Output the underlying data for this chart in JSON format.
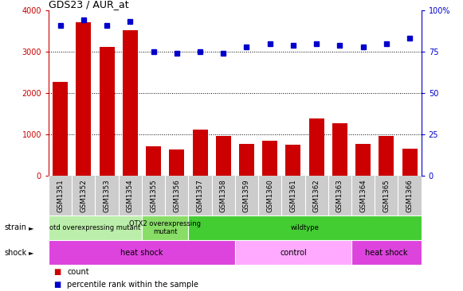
{
  "title": "GDS23 / AUR_at",
  "samples": [
    "GSM1351",
    "GSM1352",
    "GSM1353",
    "GSM1354",
    "GSM1355",
    "GSM1356",
    "GSM1357",
    "GSM1358",
    "GSM1359",
    "GSM1360",
    "GSM1361",
    "GSM1362",
    "GSM1363",
    "GSM1364",
    "GSM1365",
    "GSM1366"
  ],
  "counts": [
    2280,
    3700,
    3120,
    3510,
    720,
    650,
    1120,
    960,
    770,
    850,
    760,
    1380,
    1270,
    770,
    960,
    660
  ],
  "percentiles": [
    91,
    94,
    91,
    93,
    75,
    74,
    75,
    74,
    78,
    80,
    79,
    80,
    79,
    78,
    80,
    83
  ],
  "ylim_left": [
    0,
    4000
  ],
  "ylim_right": [
    0,
    100
  ],
  "yticks_left": [
    0,
    1000,
    2000,
    3000,
    4000
  ],
  "yticks_right": [
    0,
    25,
    50,
    75,
    100
  ],
  "bar_color": "#cc0000",
  "dot_color": "#0000cc",
  "strain_groups": [
    {
      "label": "otd overexpressing mutant",
      "start": 0,
      "end": 4,
      "color": "#bbeeaa"
    },
    {
      "label": "OTX2 overexpressing\nmutant",
      "start": 4,
      "end": 6,
      "color": "#88dd66"
    },
    {
      "label": "wildtype",
      "start": 6,
      "end": 16,
      "color": "#44cc33"
    }
  ],
  "shock_groups": [
    {
      "label": "heat shock",
      "start": 0,
      "end": 8,
      "color": "#dd44dd"
    },
    {
      "label": "control",
      "start": 8,
      "end": 13,
      "color": "#ffaaff"
    },
    {
      "label": "heat shock",
      "start": 13,
      "end": 16,
      "color": "#dd44dd"
    }
  ],
  "bar_width": 0.65,
  "tick_area_color": "#cccccc",
  "grid_color": "#000000",
  "grid_linestyle": ":",
  "grid_linewidth": 0.7
}
